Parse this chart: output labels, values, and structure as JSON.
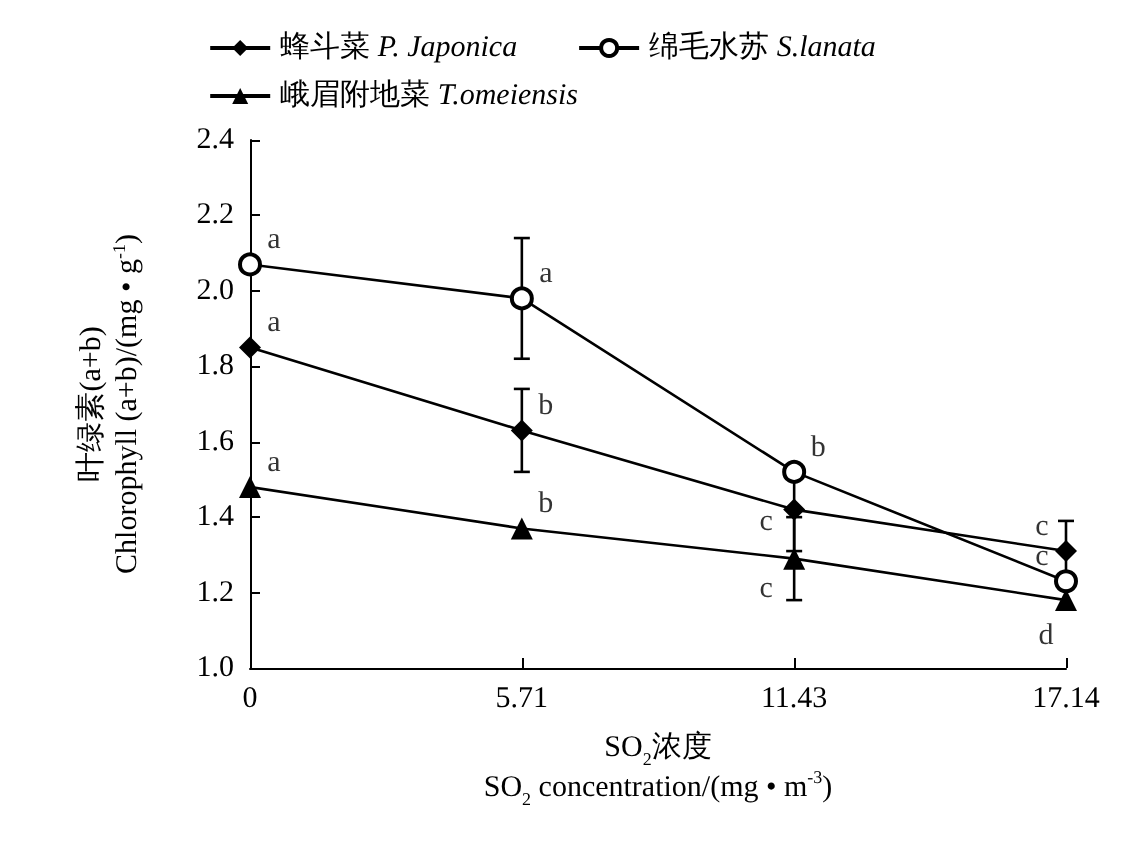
{
  "chart_data": {
    "type": "line",
    "xlabel": "SO$_{2}$浓度\nSO$_{2}$ concentration/(mg • m$^{-3}$)",
    "ylabel": "叶绿素(a+b)\nChlorophyll (a+b)/(mg • g$^{-1}$)",
    "x": [
      0,
      5.71,
      11.43,
      17.14
    ],
    "series": [
      {
        "name": "蜂斗菜 P. Japonica",
        "color": "#000000",
        "marker": "diamond",
        "values": [
          1.85,
          1.63,
          1.42,
          1.31
        ],
        "errors": [
          null,
          0.11,
          0.11,
          0.08
        ]
      },
      {
        "name": "绵毛水苏 S.lanata",
        "color": "#000000",
        "marker": "circle",
        "values": [
          2.07,
          1.98,
          1.52,
          1.23
        ],
        "errors": [
          null,
          0.16,
          null,
          null
        ]
      },
      {
        "name": "峨眉附地菜 T.omeiensis",
        "color": "#000000",
        "marker": "triangle",
        "values": [
          1.48,
          1.37,
          1.29,
          1.18
        ],
        "errors": [
          null,
          null,
          0.11,
          null
        ]
      }
    ],
    "annotations": [
      {
        "text": "a",
        "x": 0,
        "y": 1.85
      },
      {
        "text": "b",
        "x": 5.71,
        "y": 1.63
      },
      {
        "text": "c",
        "x": 11.43,
        "y": 1.42
      },
      {
        "text": "c",
        "x": 17.14,
        "y": 1.31
      },
      {
        "text": "a",
        "x": 0,
        "y": 2.07
      },
      {
        "text": "a",
        "x": 5.71,
        "y": 1.98
      },
      {
        "text": "b",
        "x": 11.43,
        "y": 1.52
      },
      {
        "text": "c",
        "x": 17.14,
        "y": 1.23
      },
      {
        "text": "a",
        "x": 0,
        "y": 1.48
      },
      {
        "text": "b",
        "x": 5.71,
        "y": 1.37
      },
      {
        "text": "c",
        "x": 11.43,
        "y": 1.29
      },
      {
        "text": "d",
        "x": 17.14,
        "y": 1.18
      }
    ],
    "xlim": [
      0,
      17.14
    ],
    "xticks": [
      0,
      5.71,
      11.43,
      17.14
    ],
    "ylim": [
      1.0,
      2.4
    ],
    "yticks": [
      {
        "value": 1.0,
        "label": "1.0"
      },
      {
        "value": 1.2,
        "label": "1.2"
      },
      {
        "value": 1.4,
        "label": "1.4"
      },
      {
        "value": 1.6,
        "label": "1.6"
      },
      {
        "value": 1.8,
        "label": "1.8"
      },
      {
        "value": 2.0,
        "label": "2.0"
      },
      {
        "value": 2.2,
        "label": "2.2"
      },
      {
        "value": 2.4,
        "label": "2.4"
      }
    ],
    "grid": false,
    "legend": "top",
    "line_style": "solid"
  }
}
